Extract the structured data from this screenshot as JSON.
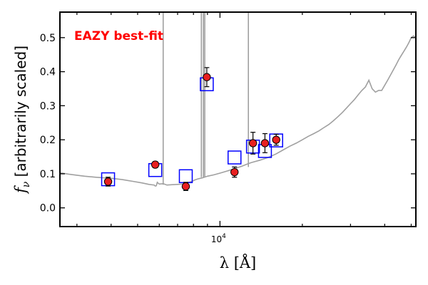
{
  "chart_data": {
    "type": "scatter",
    "xscale": "log",
    "xlim": [
      2600,
      52000
    ],
    "ylim": [
      -0.055,
      0.575
    ],
    "yticks": [
      0.0,
      0.1,
      0.2,
      0.3,
      0.4,
      0.5
    ],
    "ytick_labels": [
      "0.0",
      "0.1",
      "0.2",
      "0.3",
      "0.4",
      "0.5"
    ],
    "xtick_major": [
      10000
    ],
    "xtick_major_labels": [
      "10",
      "4"
    ],
    "xtick_minor": [
      3000,
      4000,
      5000,
      6000,
      7000,
      8000,
      9000,
      20000,
      30000,
      40000,
      50000
    ],
    "xlabel": "λ [Å]",
    "ylabel": "f_ν [arbitrarily scaled]",
    "ylabel_parts": {
      "symbol": "f",
      "subscript": "ν",
      "rest": " [arbitrarily scaled]"
    },
    "annotation": "EAZY best-fit",
    "colors": {
      "annotation": "#ff0000",
      "sed_line": "#a0a0a0",
      "model_marker": "#0000ff",
      "observed_marker_fill": "#e82020",
      "observed_marker_edge": "#000000",
      "errorbar": "#000000"
    },
    "grid": false,
    "series": [
      {
        "type": "line",
        "x": [
          2600,
          2800,
          3000,
          3200,
          3500,
          3800,
          4000,
          4400,
          4800,
          5200,
          5500,
          5750,
          5800,
          5850,
          5900,
          5950,
          6000,
          6200,
          6400,
          6700,
          7000,
          7300,
          7600,
          7900,
          8100,
          8300,
          8600,
          9000,
          9500,
          10000,
          10500,
          11000,
          11500,
          12000,
          12500,
          13000,
          14000,
          15000,
          16000,
          17000,
          18000,
          19000,
          20000,
          21000,
          22000,
          23000,
          24000,
          25000,
          26000,
          27000,
          28000,
          29000,
          30000,
          31000,
          32000,
          33000,
          34000,
          35000,
          36000,
          37000,
          38000,
          39000,
          40000,
          41000,
          42000,
          43000,
          44000,
          45000,
          46000,
          47000,
          48000,
          49000,
          50000,
          51000,
          52000
        ],
        "y": [
          0.103,
          0.099,
          0.096,
          0.093,
          0.09,
          0.088,
          0.087,
          0.083,
          0.078,
          0.073,
          0.069,
          0.067,
          0.064,
          0.065,
          0.075,
          0.072,
          0.07,
          0.071,
          0.067,
          0.068,
          0.069,
          0.07,
          0.074,
          0.078,
          0.082,
          0.085,
          0.088,
          0.093,
          0.097,
          0.102,
          0.107,
          0.112,
          0.117,
          0.122,
          0.128,
          0.133,
          0.14,
          0.148,
          0.158,
          0.17,
          0.181,
          0.19,
          0.2,
          0.21,
          0.218,
          0.226,
          0.236,
          0.245,
          0.256,
          0.268,
          0.28,
          0.293,
          0.306,
          0.318,
          0.332,
          0.345,
          0.355,
          0.375,
          0.35,
          0.34,
          0.345,
          0.345,
          0.36,
          0.375,
          0.39,
          0.405,
          0.42,
          0.435,
          0.448,
          0.46,
          0.472,
          0.485,
          0.5,
          0.505,
          0.5
        ]
      },
      {
        "type": "vlines",
        "x": [
          6200,
          8550,
          8700,
          8800,
          12700
        ],
        "ybase": [
          0.068,
          0.09,
          0.09,
          0.09,
          0.12
        ]
      },
      {
        "type": "model_fluxes",
        "marker": "square",
        "x": [
          3900,
          5800,
          7500,
          8950,
          11300,
          13200,
          14600,
          16050
        ],
        "y": [
          0.084,
          0.111,
          0.093,
          0.363,
          0.148,
          0.18,
          0.167,
          0.198
        ]
      },
      {
        "type": "observed_fluxes",
        "marker": "circle",
        "x": [
          3900,
          5800,
          7500,
          8950,
          11300,
          13200,
          14600,
          16050
        ],
        "y": [
          0.077,
          0.127,
          0.063,
          0.384,
          0.105,
          0.19,
          0.19,
          0.2
        ],
        "yerr": [
          0.013,
          0.009,
          0.012,
          0.028,
          0.015,
          0.032,
          0.028,
          0.016
        ]
      }
    ]
  }
}
